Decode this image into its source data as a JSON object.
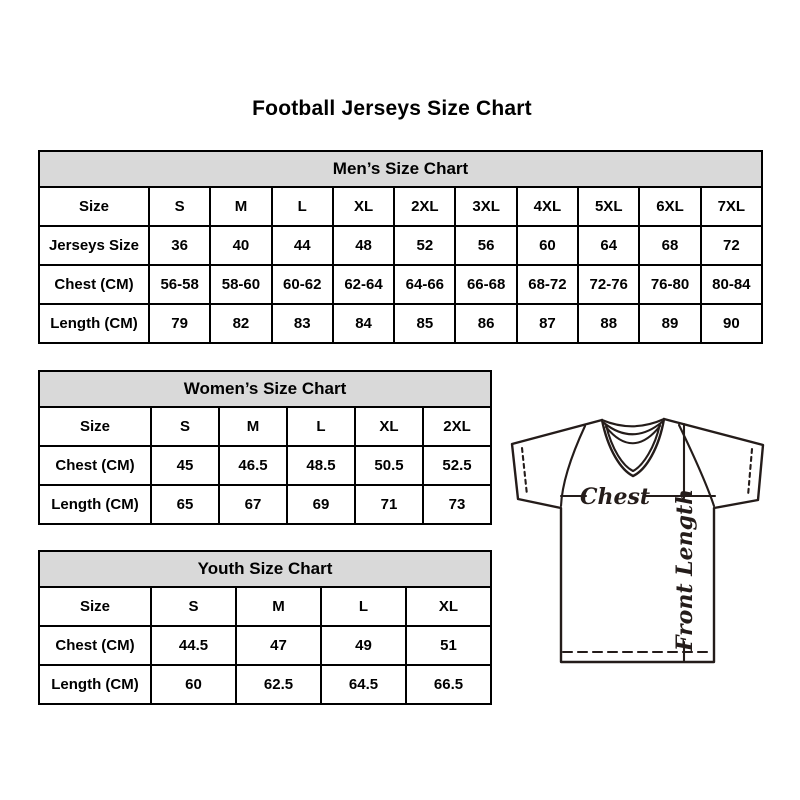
{
  "page_title": "Football Jerseys Size Chart",
  "colors": {
    "table_header_bg": "#d9d9d9",
    "table_border": "#000000",
    "text": "#000000",
    "jersey_outline": "#241c1a"
  },
  "chart_data": [
    {
      "type": "table",
      "title": "Men’s Size Chart",
      "header_row": [
        "Size",
        "S",
        "M",
        "L",
        "XL",
        "2XL",
        "3XL",
        "4XL",
        "5XL",
        "6XL",
        "7XL"
      ],
      "rows": [
        [
          "Jerseys Size",
          "36",
          "40",
          "44",
          "48",
          "52",
          "56",
          "60",
          "64",
          "68",
          "72"
        ],
        [
          "Chest (CM)",
          "56-58",
          "58-60",
          "60-62",
          "62-64",
          "64-66",
          "66-68",
          "68-72",
          "72-76",
          "76-80",
          "80-84"
        ],
        [
          "Length (CM)",
          "79",
          "82",
          "83",
          "84",
          "85",
          "86",
          "87",
          "88",
          "89",
          "90"
        ]
      ]
    },
    {
      "type": "table",
      "title": "Women’s Size Chart",
      "header_row": [
        "Size",
        "S",
        "M",
        "L",
        "XL",
        "2XL"
      ],
      "rows": [
        [
          "Chest (CM)",
          "45",
          "46.5",
          "48.5",
          "50.5",
          "52.5"
        ],
        [
          "Length (CM)",
          "65",
          "67",
          "69",
          "71",
          "73"
        ]
      ]
    },
    {
      "type": "table",
      "title": "Youth Size Chart",
      "header_row": [
        "Size",
        "S",
        "M",
        "L",
        "XL"
      ],
      "rows": [
        [
          "Chest (CM)",
          "44.5",
          "47",
          "49",
          "51"
        ],
        [
          "Length (CM)",
          "60",
          "62.5",
          "64.5",
          "66.5"
        ]
      ]
    }
  ],
  "jersey_diagram": {
    "chest_label": "Chest",
    "front_length_label": "Front Length"
  }
}
